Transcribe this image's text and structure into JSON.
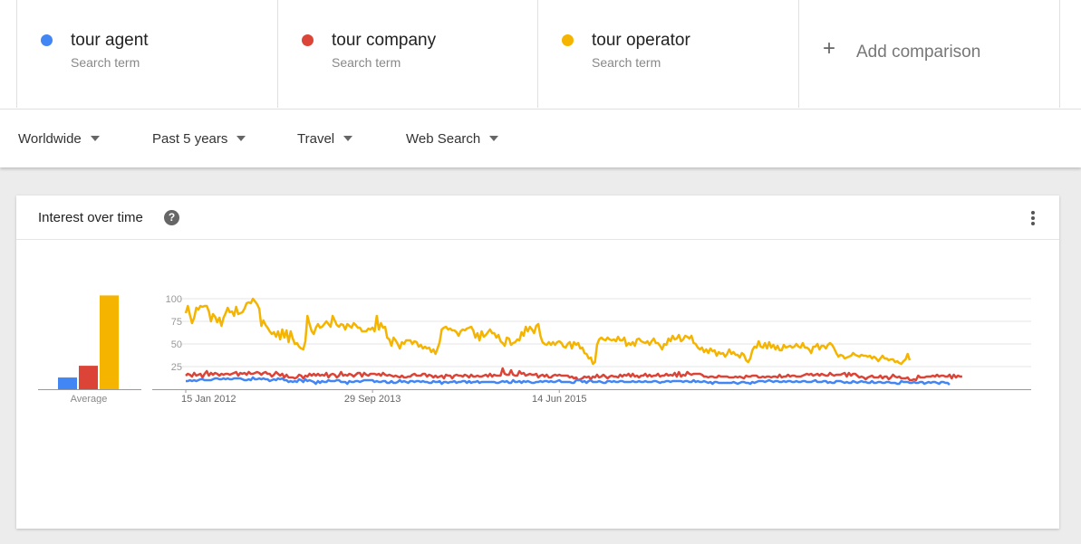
{
  "terms": [
    {
      "name": "tour agent",
      "subtitle": "Search term",
      "color": "#4285f4"
    },
    {
      "name": "tour company",
      "subtitle": "Search term",
      "color": "#db4437"
    },
    {
      "name": "tour operator",
      "subtitle": "Search term",
      "color": "#f4b400"
    }
  ],
  "add_comparison": "Add comparison",
  "filters": {
    "region": "Worldwide",
    "time": "Past 5 years",
    "category": "Travel",
    "property": "Web Search"
  },
  "panel": {
    "title": "Interest over time",
    "help_icon": "help-icon",
    "menu_icon": "more-vert-icon"
  },
  "chart_data": [
    {
      "type": "bar",
      "xlabel": "Average",
      "categories": [
        "tour agent",
        "tour company",
        "tour operator"
      ],
      "values": [
        7,
        14,
        56
      ],
      "colors": [
        "#4285f4",
        "#db4437",
        "#f4b400"
      ]
    },
    {
      "type": "line",
      "x_tick_labels": [
        "15 Jan 2012",
        "29 Sep 2013",
        "14 Jun 2015"
      ],
      "y_ticks": [
        25,
        50,
        75,
        100
      ],
      "ylim": [
        0,
        100
      ],
      "grid": true,
      "x_start": "2012-01-15",
      "x_step": "weekly",
      "series": [
        {
          "name": "tour operator",
          "color": "#f4b400",
          "values": [
            84,
            92,
            82,
            73,
            79,
            90,
            88,
            92,
            91,
            92,
            92,
            86,
            75,
            83,
            80,
            74,
            79,
            70,
            79,
            84,
            90,
            85,
            86,
            81,
            91,
            83,
            84,
            85,
            89,
            95,
            96,
            95,
            100,
            97,
            94,
            89,
            70,
            76,
            71,
            68,
            64,
            61,
            63,
            58,
            64,
            55,
            66,
            57,
            65,
            52,
            64,
            56,
            50,
            51,
            47,
            45,
            44,
            53,
            81,
            72,
            64,
            61,
            68,
            72,
            68,
            69,
            72,
            75,
            72,
            69,
            81,
            76,
            71,
            69,
            72,
            71,
            66,
            72,
            70,
            68,
            73,
            71,
            68,
            68,
            64,
            64,
            64,
            67,
            66,
            68,
            64,
            81,
            66,
            73,
            68,
            69,
            57,
            55,
            48,
            57,
            54,
            50,
            45,
            52,
            50,
            54,
            54,
            54,
            50,
            53,
            52,
            47,
            49,
            45,
            47,
            45,
            46,
            41,
            44,
            39,
            45,
            52,
            66,
            68,
            69,
            66,
            67,
            65,
            65,
            63,
            59,
            64,
            66,
            65,
            67,
            68,
            69,
            65,
            57,
            62,
            54,
            64,
            58,
            60,
            63,
            66,
            62,
            62,
            57,
            60,
            53,
            51,
            48,
            57,
            56,
            49,
            51,
            52,
            55,
            54,
            63,
            59,
            69,
            64,
            69,
            66,
            62,
            70,
            72,
            59,
            52,
            50,
            49,
            52,
            49,
            52,
            49,
            52,
            53,
            51,
            47,
            46,
            50,
            52,
            45,
            52,
            49,
            51,
            45,
            46,
            40,
            39,
            34,
            35,
            28,
            30,
            49,
            55,
            57,
            55,
            54,
            57,
            55,
            54,
            55,
            53,
            58,
            54,
            54,
            57,
            48,
            51,
            49,
            52,
            48,
            55,
            56,
            53,
            52,
            51,
            53,
            49,
            53,
            56,
            51,
            51,
            48,
            44,
            50,
            49,
            56,
            53,
            59,
            55,
            56,
            60,
            53,
            55,
            59,
            58,
            56,
            59,
            51,
            50,
            46,
            44,
            46,
            41,
            44,
            40,
            45,
            42,
            43,
            37,
            41,
            39,
            40,
            36,
            39,
            44,
            39,
            41,
            38,
            38,
            35,
            40,
            38,
            32,
            30,
            34,
            43,
            47,
            46,
            53,
            47,
            46,
            51,
            45,
            52,
            46,
            49,
            44,
            48,
            43,
            43,
            49,
            46,
            47,
            48,
            46,
            47,
            50,
            47,
            46,
            51,
            46,
            46,
            44,
            40,
            47,
            47,
            50,
            44,
            48,
            48,
            45,
            49,
            51,
            49,
            45,
            40,
            36,
            38,
            37,
            34,
            35,
            36,
            37,
            40,
            38,
            37,
            36,
            38,
            37,
            37,
            36,
            37,
            34,
            36,
            34,
            31,
            34,
            37,
            34,
            34,
            32,
            33,
            33,
            30,
            31,
            29,
            28,
            31,
            33,
            39,
            32
          ]
        },
        {
          "name": "tour company",
          "color": "#db4437",
          "values": [
            15,
            17,
            16,
            14,
            18,
            15,
            16,
            17,
            13,
            17,
            20,
            15,
            18,
            16,
            18,
            17,
            15,
            17,
            16,
            17,
            17,
            16,
            17,
            18,
            19,
            15,
            18,
            17,
            18,
            16,
            19,
            17,
            17,
            18,
            19,
            18,
            16,
            18,
            19,
            17,
            17,
            14,
            16,
            19,
            17,
            15,
            17,
            13,
            16,
            13,
            13,
            13,
            12,
            13,
            16,
            15,
            12,
            15,
            14,
            17,
            15,
            17,
            15,
            17,
            15,
            16,
            15,
            18,
            13,
            16,
            17,
            16,
            13,
            15,
            19,
            15,
            16,
            15,
            17,
            16,
            14,
            16,
            18,
            18,
            14,
            18,
            16,
            15,
            17,
            17,
            17,
            16,
            17,
            15,
            18,
            16,
            15,
            16,
            15,
            14,
            15,
            14,
            13,
            15,
            13,
            13,
            14,
            14,
            16,
            17,
            15,
            15,
            15,
            17,
            17,
            14,
            16,
            15,
            13,
            15,
            13,
            14,
            15,
            12,
            16,
            15,
            15,
            12,
            15,
            16,
            15,
            15,
            14,
            16,
            15,
            13,
            16,
            14,
            14,
            15,
            14,
            14,
            15,
            16,
            14,
            17,
            14,
            16,
            15,
            15,
            15,
            23,
            17,
            16,
            16,
            21,
            16,
            15,
            15,
            20,
            17,
            18,
            15,
            16,
            17,
            16,
            16,
            17,
            13,
            15,
            16,
            14,
            16,
            13,
            13,
            15,
            16,
            15,
            16,
            15,
            15,
            15,
            15,
            13,
            14,
            12,
            13,
            10,
            11,
            12,
            14,
            13,
            14,
            11,
            14,
            13,
            16,
            13,
            14,
            16,
            14,
            12,
            14,
            15,
            14,
            14,
            13,
            16,
            14,
            16,
            15,
            17,
            14,
            17,
            14,
            15,
            13,
            15,
            15,
            17,
            14,
            16,
            14,
            15,
            15,
            17,
            14,
            15,
            15,
            17,
            15,
            16,
            15,
            18,
            14,
            19,
            14,
            16,
            15,
            19,
            17,
            16,
            17,
            17,
            17,
            17,
            16,
            14,
            14,
            13,
            14,
            14,
            13,
            13,
            15,
            14,
            14,
            14,
            14,
            13,
            13,
            13,
            14,
            13,
            14,
            13,
            12,
            15,
            14,
            14,
            15,
            15,
            15,
            13,
            13,
            14,
            13,
            14,
            14,
            13,
            14,
            14,
            13,
            16,
            13,
            14,
            14,
            16,
            14,
            15,
            15,
            14,
            14,
            14,
            15,
            16,
            17,
            16,
            17,
            15,
            16,
            17,
            15,
            17,
            16,
            15,
            15,
            18,
            16,
            15,
            16,
            16,
            16,
            17,
            18,
            14,
            18,
            15,
            17,
            17,
            15,
            13,
            14,
            13,
            11,
            13,
            14,
            15,
            13,
            13,
            13,
            15,
            12,
            14,
            14,
            11,
            13,
            16,
            14,
            13,
            14,
            12,
            12,
            12,
            13,
            10,
            10,
            11,
            10,
            15,
            13,
            13,
            13,
            14,
            14,
            14,
            15,
            14,
            16,
            14,
            15,
            15,
            14,
            14,
            16,
            12,
            16,
            13,
            15,
            14,
            14
          ]
        },
        {
          "name": "tour agent",
          "color": "#4285f4",
          "values": [
            9,
            9,
            10,
            9,
            10,
            9,
            10,
            11,
            11,
            10,
            10,
            10,
            10,
            11,
            12,
            12,
            11,
            11,
            12,
            11,
            12,
            11,
            11,
            12,
            12,
            12,
            12,
            11,
            10,
            10,
            11,
            10,
            13,
            11,
            11,
            12,
            11,
            12,
            11,
            11,
            9,
            10,
            11,
            10,
            12,
            11,
            12,
            10,
            10,
            8,
            9,
            8,
            9,
            8,
            11,
            10,
            8,
            11,
            9,
            10,
            9,
            8,
            6,
            9,
            7,
            9,
            8,
            8,
            10,
            9,
            9,
            9,
            10,
            10,
            8,
            8,
            8,
            6,
            9,
            8,
            8,
            9,
            9,
            8,
            9,
            10,
            10,
            10,
            10,
            10,
            8,
            9,
            8,
            8,
            9,
            9,
            7,
            7,
            9,
            7,
            7,
            8,
            10,
            8,
            9,
            8,
            7,
            9,
            9,
            8,
            9,
            9,
            8,
            9,
            8,
            8,
            7,
            7,
            9,
            8,
            8,
            9,
            6,
            8,
            8,
            7,
            8,
            8,
            9,
            7,
            8,
            8,
            9,
            9,
            7,
            9,
            7,
            8,
            8,
            9,
            7,
            8,
            8,
            8,
            8,
            8,
            8,
            8,
            7,
            7,
            8,
            9,
            8,
            9,
            7,
            7,
            10,
            8,
            8,
            9,
            7,
            9,
            8,
            9,
            8,
            7,
            7,
            8,
            8,
            9,
            8,
            9,
            9,
            8,
            9,
            8,
            8,
            9,
            10,
            8,
            8,
            8,
            8,
            8,
            7,
            7,
            10,
            10,
            10,
            8,
            9,
            7,
            9,
            10,
            8,
            8,
            8,
            9,
            8,
            7,
            7,
            9,
            9,
            8,
            9,
            8,
            8,
            9,
            9,
            8,
            8,
            8,
            8,
            9,
            8,
            8,
            9,
            8,
            8,
            9,
            8,
            8,
            8,
            9,
            9,
            8,
            7,
            8,
            8,
            9,
            9,
            8,
            9,
            9,
            9,
            9,
            9,
            8,
            9,
            9,
            8,
            8,
            10,
            8,
            9,
            8,
            8,
            9,
            8,
            7,
            8,
            6,
            8,
            8,
            7,
            7,
            7,
            7,
            7,
            7,
            7,
            8,
            7,
            6,
            7,
            8,
            8,
            7,
            7,
            6,
            8,
            7,
            8,
            9,
            9,
            9,
            8,
            9,
            10,
            9,
            8,
            9,
            9,
            8,
            8,
            9,
            8,
            9,
            9,
            8,
            8,
            9,
            8,
            8,
            9,
            9,
            8,
            8,
            8,
            9,
            10,
            8,
            8,
            8,
            9,
            9,
            7,
            8,
            7,
            7,
            9,
            9,
            9,
            8,
            7,
            8,
            7,
            7,
            9,
            8,
            7,
            8,
            9,
            8,
            8,
            7,
            7,
            9,
            7,
            7,
            8,
            8,
            7,
            7,
            8,
            8,
            7,
            7,
            7,
            6,
            6,
            9,
            8,
            8,
            8,
            7,
            7,
            8,
            7,
            7,
            8,
            8,
            6,
            7,
            8,
            7,
            8,
            8,
            7,
            6,
            8,
            8,
            7,
            7,
            5
          ]
        }
      ]
    }
  ]
}
